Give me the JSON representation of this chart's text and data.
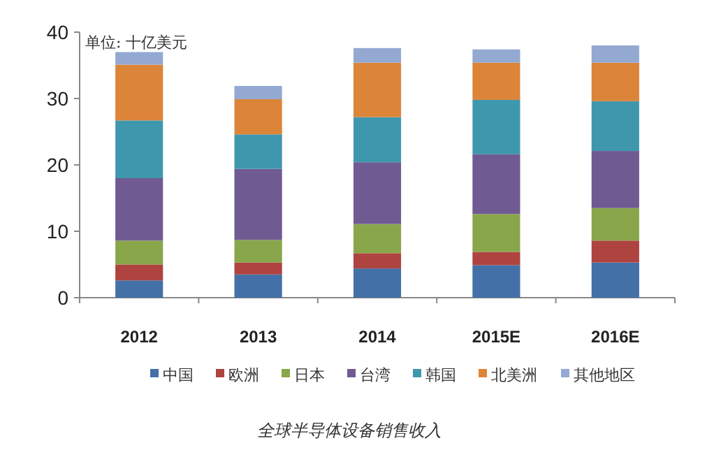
{
  "chart_data": {
    "type": "bar",
    "title": "全球半导体设备销售收入",
    "annotations": [
      "单位: 十亿美元"
    ],
    "categories": [
      "2012",
      "2013",
      "2014",
      "2015E",
      "2016E"
    ],
    "stacked": true,
    "ylim": [
      0,
      40
    ],
    "yticks": [
      0,
      10,
      20,
      30,
      40
    ],
    "legend": "bottom",
    "series": [
      {
        "name": "中国",
        "color": "#4470a8",
        "values": [
          2.6,
          3.5,
          4.4,
          4.9,
          5.3
        ]
      },
      {
        "name": "欧洲",
        "color": "#ae4340",
        "values": [
          2.4,
          1.8,
          2.3,
          2.0,
          3.3
        ]
      },
      {
        "name": "日本",
        "color": "#89a64a",
        "values": [
          3.6,
          3.4,
          4.4,
          5.7,
          4.9
        ]
      },
      {
        "name": "台湾",
        "color": "#705a92",
        "values": [
          9.4,
          10.7,
          9.3,
          9.0,
          8.6
        ]
      },
      {
        "name": "韩国",
        "color": "#3f97ae",
        "values": [
          8.7,
          5.2,
          6.8,
          8.2,
          7.5
        ]
      },
      {
        "name": "北美洲",
        "color": "#dc8438",
        "values": [
          8.4,
          5.3,
          8.2,
          5.6,
          5.8
        ]
      },
      {
        "name": "其他地区",
        "color": "#93a9d2",
        "values": [
          1.9,
          2.0,
          2.2,
          2.0,
          2.6
        ]
      }
    ]
  }
}
